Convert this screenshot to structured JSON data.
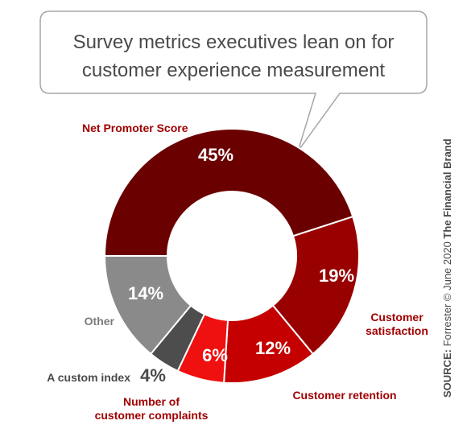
{
  "chart_data": {
    "type": "pie",
    "title_lines": [
      "Survey metrics executives lean on for",
      "customer experience measurement"
    ],
    "slices": [
      {
        "label": "Net Promoter Score",
        "value": 45,
        "value_label": "45%",
        "color": "#6b0000"
      },
      {
        "label": "Customer satisfaction",
        "label_lines": [
          "Customer",
          "satisfaction"
        ],
        "value": 19,
        "value_label": "19%",
        "color": "#990000"
      },
      {
        "label": "Customer retention",
        "value": 12,
        "value_label": "12%",
        "color": "#c40000"
      },
      {
        "label": "Number of customer complaints",
        "label_lines": [
          "Number of",
          "customer complaints"
        ],
        "value": 6,
        "value_label": "6%",
        "color": "#ef1010"
      },
      {
        "label": "A custom index",
        "value": 4,
        "value_label": "4%",
        "color": "#4d4d4d"
      },
      {
        "label": "Other",
        "value": 14,
        "value_label": "14%",
        "color": "#8a8a8a"
      }
    ],
    "label_color": "#a00000",
    "source": {
      "prefix": "SOURCE:",
      "text": " Forrester © June 2020 ",
      "brand": "The Financial Brand"
    }
  }
}
